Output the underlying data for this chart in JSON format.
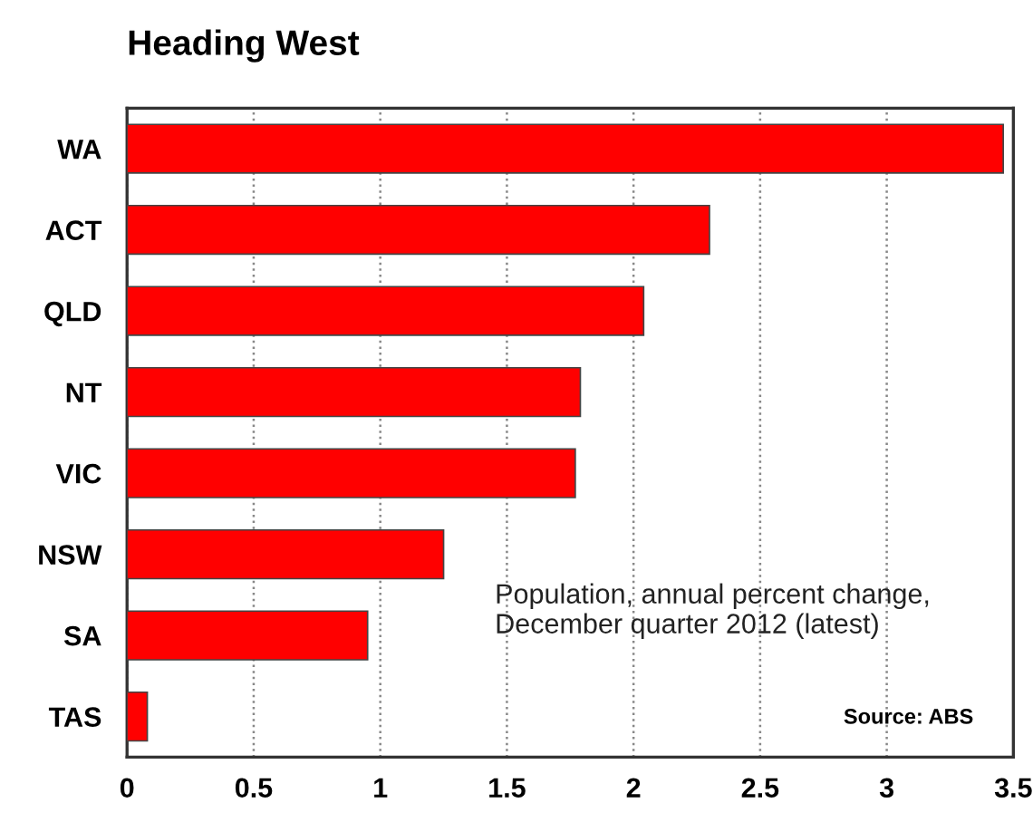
{
  "chart_data": {
    "type": "bar",
    "orientation": "horizontal",
    "title": "Heading West",
    "categories": [
      "WA",
      "ACT",
      "QLD",
      "NT",
      "VIC",
      "NSW",
      "SA",
      "TAS"
    ],
    "values": [
      3.46,
      2.3,
      2.04,
      1.79,
      1.77,
      1.25,
      0.95,
      0.08
    ],
    "color": "#ff0000",
    "xlim": [
      0,
      3.5
    ],
    "xticks": [
      0,
      0.5,
      1,
      1.5,
      2,
      2.5,
      3,
      3.5
    ],
    "grid": "x",
    "annotations": [
      "Population, annual percent change,\nDecember quarter 2012 (latest)",
      "Source: ABS"
    ]
  }
}
